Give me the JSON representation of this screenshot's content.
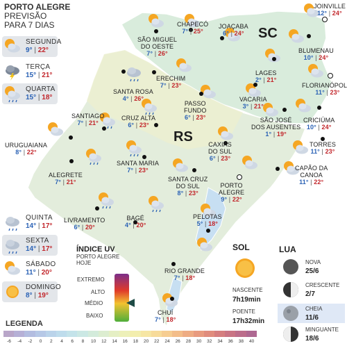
{
  "header": {
    "title": "PORTO ALEGRE",
    "subtitle1": "PREVISÃO",
    "subtitle2": "PARA 7 DIAS"
  },
  "days": [
    {
      "name": "SEGUNDA",
      "min": "9°",
      "max": "22°",
      "icon": "sun-cloud-icon"
    },
    {
      "name": "TERÇA",
      "min": "15°",
      "max": "21°",
      "icon": "thunderstorm-icon"
    },
    {
      "name": "QUARTA",
      "min": "15°",
      "max": "18°",
      "icon": "rain-sun-icon"
    },
    {
      "name": "QUINTA",
      "min": "14°",
      "max": "17°",
      "icon": "rain-icon"
    },
    {
      "name": "SEXTA",
      "min": "14°",
      "max": "17°",
      "icon": "rain-icon"
    },
    {
      "name": "SÁBADO",
      "min": "11°",
      "max": "20°",
      "icon": "sun-cloud-icon"
    },
    {
      "name": "DOMINGO",
      "min": "8°",
      "max": "19°",
      "icon": "sun-icon"
    }
  ],
  "states": {
    "sc": "SC",
    "rs": "RS"
  },
  "cities": [
    {
      "id": "joinville",
      "name": "JOINVILLE",
      "min": "12°",
      "max": "24°"
    },
    {
      "id": "sao-miguel",
      "name": "SÃO MIGUEL",
      "name2": "DO OESTE",
      "min": "7°",
      "max": "26°"
    },
    {
      "id": "chapeco",
      "name": "CHAPECÓ",
      "min": "7°",
      "max": "25°"
    },
    {
      "id": "joacaba",
      "name": "JOAÇABA",
      "min": "6°",
      "max": "24°"
    },
    {
      "id": "blumenau",
      "name": "BLUMENAU",
      "min": "10°",
      "max": "24°"
    },
    {
      "id": "lages",
      "name": "LAGES",
      "min": "2°",
      "max": "21°"
    },
    {
      "id": "florianopolis",
      "name": "FLORIANÓPOLIS",
      "min": "11°",
      "max": "23°"
    },
    {
      "id": "erechim",
      "name": "ERECHIM",
      "min": "7°",
      "max": "23°"
    },
    {
      "id": "santa-rosa",
      "name": "SANTA ROSA",
      "min": "4°",
      "max": "26°"
    },
    {
      "id": "vacaria",
      "name": "VACARIA",
      "min": "3°",
      "max": "21°"
    },
    {
      "id": "passo-fundo",
      "name": "PASSO",
      "name2": "FUNDO",
      "min": "6°",
      "max": "23°"
    },
    {
      "id": "sao-jose",
      "name": "SÃO JOSÉ",
      "name2": "DOS AUSENTES",
      "min": "1°",
      "max": "19°"
    },
    {
      "id": "criciuma",
      "name": "CRICIÚMA",
      "min": "10°",
      "max": "24°"
    },
    {
      "id": "santiago",
      "name": "SANTIAGO",
      "min": "7°",
      "max": "21°"
    },
    {
      "id": "cruz-alta",
      "name": "CRUZ ALTA",
      "min": "6°",
      "max": "23°"
    },
    {
      "id": "uruguaiana",
      "name": "URUGUAIANA",
      "min": "8°",
      "max": "22°"
    },
    {
      "id": "caxias",
      "name": "CAXIAS",
      "name2": "DO SUL",
      "min": "6°",
      "max": "23°"
    },
    {
      "id": "torres",
      "name": "TORRES",
      "min": "11°",
      "max": "23°"
    },
    {
      "id": "santa-maria",
      "name": "SANTA MARIA",
      "min": "7°",
      "max": "23°"
    },
    {
      "id": "alegrete",
      "name": "ALEGRETE",
      "min": "7°",
      "max": "21°"
    },
    {
      "id": "capao",
      "name": "CAPÃO DA",
      "name2": "CANOA",
      "min": "11°",
      "max": "22°"
    },
    {
      "id": "santa-cruz",
      "name": "SANTA CRUZ",
      "name2": "DO SUL",
      "min": "8°",
      "max": "23°"
    },
    {
      "id": "porto-alegre",
      "name": "PORTO",
      "name2": "ALEGRE",
      "min": "9°",
      "max": "22°"
    },
    {
      "id": "livramento",
      "name": "LIVRAMENTO",
      "min": "6°",
      "max": "20°"
    },
    {
      "id": "bage",
      "name": "BAGÉ",
      "min": "4°",
      "max": "20°"
    },
    {
      "id": "pelotas",
      "name": "PELOTAS",
      "min": "5°",
      "max": "18°"
    },
    {
      "id": "rio-grande",
      "name": "RIO GRANDE",
      "min": "7°",
      "max": "18°"
    },
    {
      "id": "chui",
      "name": "CHUÍ",
      "min": "7°",
      "max": "18°"
    }
  ],
  "uv": {
    "title": "ÍNDICE UV",
    "sub1": "PORTO ALEGRE",
    "sub2": "HOJE",
    "levels": [
      "EXTREMO",
      "ALTO",
      "MÉDIO",
      "BAIXO"
    ],
    "current": "MÉDIO"
  },
  "sun": {
    "title": "SOL",
    "rise_label": "NASCENTE",
    "rise": "7h19min",
    "set_label": "POENTE",
    "set": "17h32min"
  },
  "moon": {
    "title": "LUA",
    "phases": [
      {
        "name": "NOVA",
        "date": "25/6"
      },
      {
        "name": "CRESCENTE",
        "date": "2/7"
      },
      {
        "name": "CHEIA",
        "date": "11/6"
      },
      {
        "name": "MINGUANTE",
        "date": "18/6"
      }
    ],
    "selected": "CHEIA"
  },
  "legend": {
    "title": "LEGENDA",
    "values": [
      "-6",
      "-4",
      "-2",
      "0",
      "2",
      "4",
      "6",
      "8",
      "10",
      "12",
      "14",
      "16",
      "18",
      "20",
      "22",
      "24",
      "26",
      "28",
      "30",
      "32",
      "34",
      "36",
      "38",
      "40"
    ],
    "colors": [
      "#b9a6c9",
      "#b6b0d6",
      "#b3bde0",
      "#b6c8e6",
      "#bad3ea",
      "#bedcec",
      "#c4e3ea",
      "#cbe8e4",
      "#d3ebdb",
      "#dcedd0",
      "#e5efc4",
      "#edf0b9",
      "#f3eeae",
      "#f6e6a4",
      "#f7db9a",
      "#f6cd91",
      "#f3bd89",
      "#eeac83",
      "#e89b7f",
      "#e08c7d",
      "#d57e7f",
      "#c97484",
      "#bc6d8b",
      "#ae6891"
    ]
  }
}
